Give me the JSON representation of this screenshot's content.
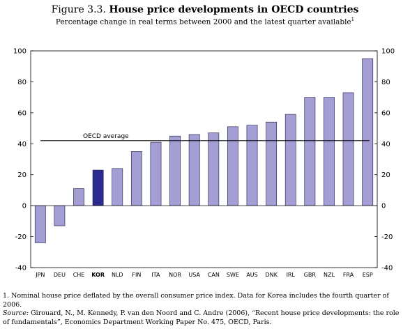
{
  "figure": {
    "number": "Figure 3.3.",
    "title": "House price developments in OECD countries",
    "subtitle": "Percentage change in real terms between 2000 and the latest quarter available",
    "subtitle_note_mark": "1"
  },
  "chart_data": {
    "type": "bar",
    "categories": [
      "JPN",
      "DEU",
      "CHE",
      "KOR",
      "NLD",
      "FIN",
      "ITA",
      "NOR",
      "USA",
      "CAN",
      "SWE",
      "AUS",
      "DNK",
      "IRL",
      "GBR",
      "NZL",
      "FRA",
      "ESP"
    ],
    "values": [
      -24,
      -13,
      11,
      23,
      24,
      35,
      41,
      45,
      46,
      47,
      51,
      52,
      54,
      59,
      70,
      70,
      73,
      95
    ],
    "highlight_category": "KOR",
    "ylim": [
      -40,
      100
    ],
    "yticks": [
      -40,
      -20,
      0,
      20,
      40,
      60,
      80,
      100
    ],
    "reference_line": {
      "label": "OECD average",
      "value": 42
    },
    "bar_color": "#a39ed4",
    "highlight_color": "#2b2a8f",
    "grid": false
  },
  "notes": {
    "footnote": "1. Nominal house price deflated by the overall consumer price index. Data for Korea includes the fourth quarter of 2006.",
    "source_label": "Source:",
    "source_text": "Girouard, N., M. Kennedy, P. van den Noord and C. Andre (2006), “Recent house price developments: the role of fundamentals”, Economics Department Working Paper No. 475, OECD, Paris."
  }
}
